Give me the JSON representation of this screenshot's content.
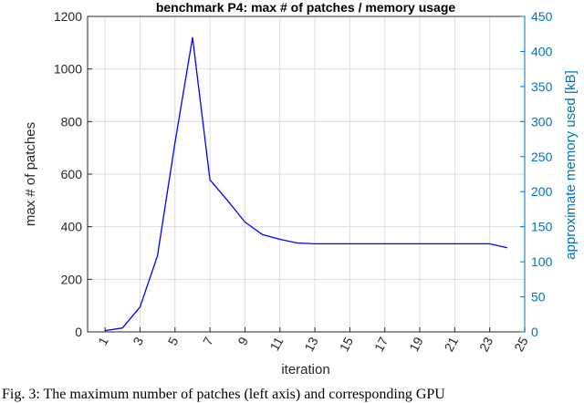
{
  "chart_data": {
    "type": "line",
    "title": "benchmark P4: max # of patches / memory usage",
    "xlabel": "iteration",
    "ylabel": "max # of patches",
    "ylabel_right": "approximate memory used [kB]",
    "xlim": [
      0,
      25
    ],
    "ylim": [
      0,
      1200
    ],
    "ylim_right": [
      0,
      450
    ],
    "x_ticks": [
      "1",
      "3",
      "5",
      "7",
      "9",
      "11",
      "13",
      "15",
      "17",
      "19",
      "21",
      "23",
      "25"
    ],
    "y_ticks": [
      "0",
      "200",
      "400",
      "600",
      "800",
      "1000",
      "1200"
    ],
    "y_ticks_right": [
      "0",
      "50",
      "100",
      "150",
      "200",
      "250",
      "300",
      "350",
      "400",
      "450"
    ],
    "grid": true,
    "series": [
      {
        "x": [
          1,
          2,
          3,
          4,
          5,
          6,
          7,
          8,
          9,
          10,
          11,
          12,
          13,
          14,
          15,
          16,
          17,
          18,
          19,
          20,
          21,
          22,
          23,
          24
        ],
        "values": [
          5,
          15,
          95,
          290,
          720,
          1120,
          578,
          500,
          418,
          370,
          352,
          338,
          335,
          335,
          335,
          335,
          335,
          335,
          335,
          335,
          335,
          335,
          335,
          320
        ]
      }
    ],
    "colors": {
      "line": "#0000FF",
      "right_axis": "#0072BD",
      "left_axis": "#262626",
      "grid": "#dcdcdc"
    }
  },
  "caption": "Fig. 3: The maximum number of patches (left axis) and corresponding GPU"
}
